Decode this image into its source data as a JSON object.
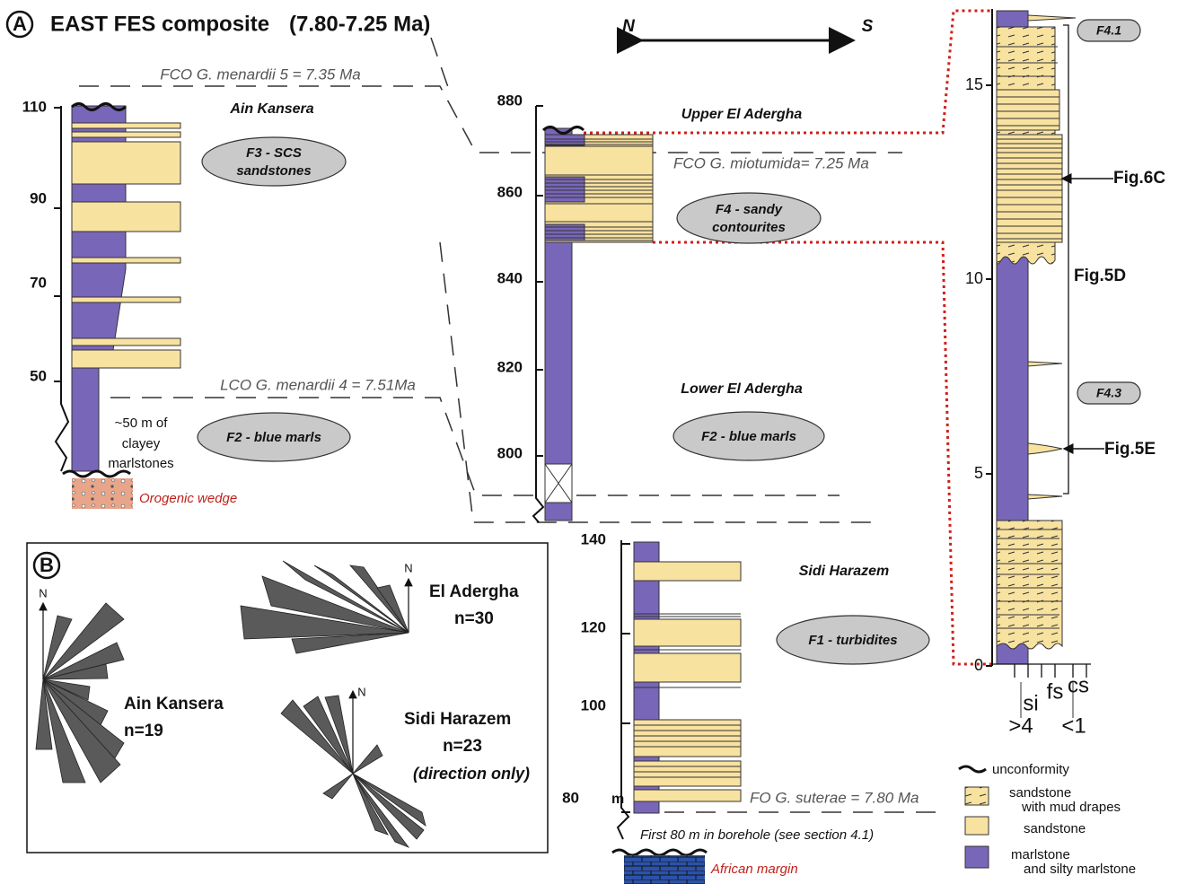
{
  "panel_a": {
    "label": "A",
    "title": "EAST FES composite",
    "age": "(7.80-7.25 Ma)"
  },
  "orientation": {
    "north": "N",
    "south": "S"
  },
  "datums": {
    "fco_menardii5": "FCO G. menardii 5 = 7.35 Ma",
    "lco_menardii4": "LCO G. menardii 4 = 7.51Ma",
    "fco_miotumida": "FCO G. miotumida= 7.25 Ma",
    "fo_suterae": "FO G. suterae = 7.80 Ma"
  },
  "ain_kansera": {
    "name": "Ain Kansera",
    "depth_ticks": [
      110,
      90,
      70,
      50
    ],
    "facies_upper": [
      "F3 - SCS",
      "sandstones"
    ],
    "facies_lower": "F2 - blue marls",
    "note": [
      "~50 m of",
      "clayey",
      "marlstones"
    ],
    "base": "Orogenic wedge"
  },
  "el_adergha": {
    "upper_name": "Upper El Adergha",
    "lower_name": "Lower El Adergha",
    "depth_ticks": [
      880,
      860,
      840,
      820,
      800
    ],
    "facies_upper": [
      "F4 - sandy",
      "contourites"
    ],
    "facies_lower": "F2 - blue marls"
  },
  "sidi_harazem": {
    "name": "Sidi Harazem",
    "depth_ticks": [
      140,
      120,
      100,
      80
    ],
    "unit": "m",
    "facies": "F1 - turbidites",
    "note": "First 80 m in borehole (see section 4.1)",
    "base": "African margin"
  },
  "detail_log": {
    "depth_ticks": [
      15,
      10,
      5,
      0
    ],
    "facies_labels": [
      "F4.1",
      "F4.3"
    ],
    "figure_refs": [
      "Fig.6C",
      "Fig.5D",
      "Fig.5E"
    ],
    "grain_size": [
      "si",
      "fs",
      "cs"
    ],
    "grain_size_phi": [
      ">4",
      "<1"
    ]
  },
  "legend": {
    "items": [
      [
        "unconformity"
      ],
      [
        "sandstone",
        "with mud drapes"
      ],
      [
        "sandstone"
      ],
      [
        "marlstone",
        "and silty marlstone"
      ]
    ]
  },
  "panel_b": {
    "label": "B",
    "roses": [
      {
        "north": "N",
        "name": "Ain Kansera",
        "count": "n=19"
      },
      {
        "north": "N",
        "name": "El Adergha",
        "count": "n=30"
      },
      {
        "north": "N",
        "name": "Sidi Harazem",
        "count": "n=23",
        "note": "(direction only)"
      }
    ]
  }
}
